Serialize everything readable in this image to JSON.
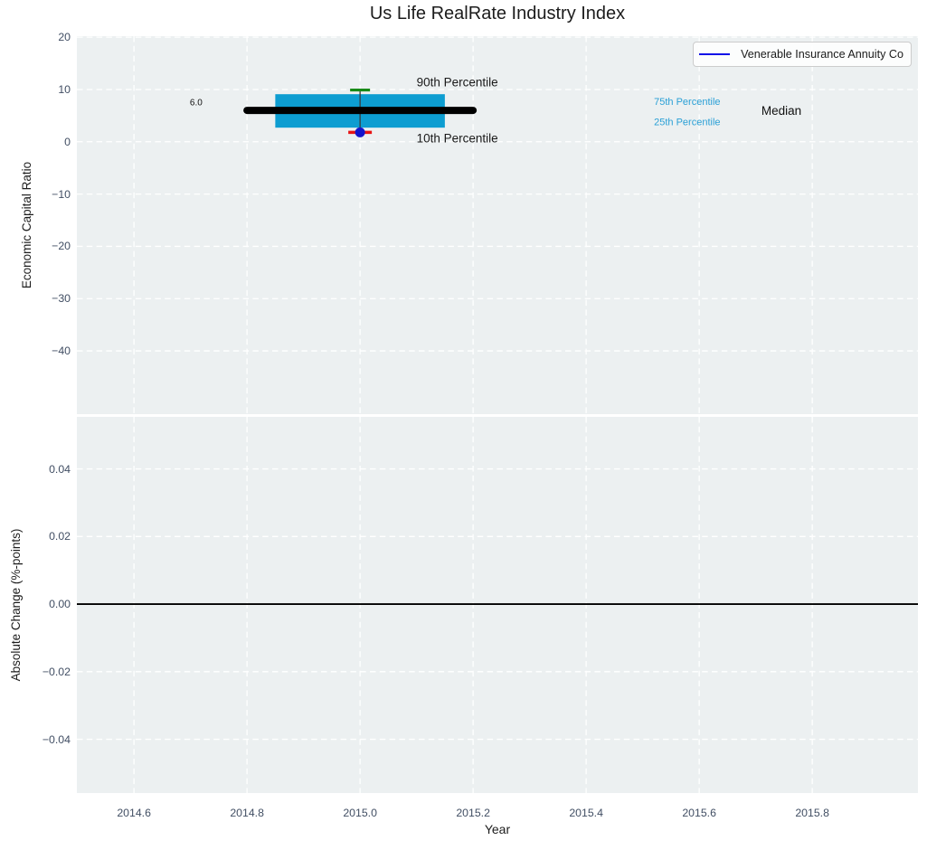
{
  "title": "Us Life RealRate Industry Index",
  "xlabel": "Year",
  "legend": {
    "label": "Venerable Insurance Annuity Co"
  },
  "colors": {
    "figure_bg": "#ffffff",
    "axes_bg": "#ecf0f1",
    "grid": "#ffffff",
    "tick_label": "#414e63",
    "text": "#1c1c1c",
    "box_fill": "#0d9dd1",
    "median_line": "#000000",
    "whisker": "#3a3a3a",
    "p90_cap": "#178a17",
    "p10_cap": "#e81313",
    "company_dot": "#1414cc",
    "legend_line": "#1010e8",
    "percentile_text": "#2aa0d6",
    "zero_line": "#000000"
  },
  "chart_data": {
    "type": "boxplot",
    "title": "Us Life RealRate Industry Index",
    "xlabel": "Year",
    "xlim": [
      2014.499,
      2015.987
    ],
    "xticks": [
      2014.6,
      2014.8,
      2015.0,
      2015.2,
      2015.4,
      2015.6,
      2015.8
    ],
    "grid": "white dashed on light-gray background",
    "legend": {
      "label": "Venerable Insurance Annuity Co",
      "position": "upper right"
    },
    "subplots": [
      {
        "ylabel": "Economic Capital Ratio",
        "ylim": [
          -52.1,
          20.2
        ],
        "yticks": [
          20,
          10,
          0,
          -10,
          -20,
          -30,
          -40
        ],
        "boxplot": {
          "x": 2015.0,
          "median": 6.0,
          "median_label": "6.0",
          "q1": 2.7,
          "q3": 9.1,
          "p10": 1.8,
          "p90": 9.9,
          "box_x": [
            2014.85,
            2015.15
          ],
          "median_x": [
            2014.8,
            2015.2
          ]
        },
        "company_point": {
          "x": 2015.0,
          "y": 1.8
        },
        "annotations": [
          {
            "text": "90th Percentile",
            "x": 2015.1,
            "y": 11.2,
            "anchor": "start",
            "size": 13.5,
            "color": "#1a1a1a"
          },
          {
            "text": "10th Percentile",
            "x": 2015.1,
            "y": 0.5,
            "anchor": "start",
            "size": 13.5,
            "color": "#1a1a1a"
          },
          {
            "text": "75th Percentile",
            "x": 2015.52,
            "y": 7.6,
            "anchor": "start",
            "size": 11,
            "color": "#2aa0d6"
          },
          {
            "text": "25th Percentile",
            "x": 2015.52,
            "y": 3.7,
            "anchor": "start",
            "size": 11,
            "color": "#2aa0d6"
          },
          {
            "text": "Median",
            "x": 2015.71,
            "y": 5.8,
            "anchor": "start",
            "size": 13.5,
            "color": "#111111"
          },
          {
            "text": "6.0",
            "x": 2014.71,
            "y": 7.4,
            "anchor": "middle",
            "size": 10,
            "color": "#111111"
          }
        ]
      },
      {
        "ylabel": "Absolute Change (%-points)",
        "ylim": [
          -0.0559,
          0.0554
        ],
        "yticks": [
          0.04,
          0.02,
          0,
          -0.02,
          -0.04
        ],
        "zero_line_y": 0,
        "series": []
      }
    ]
  }
}
